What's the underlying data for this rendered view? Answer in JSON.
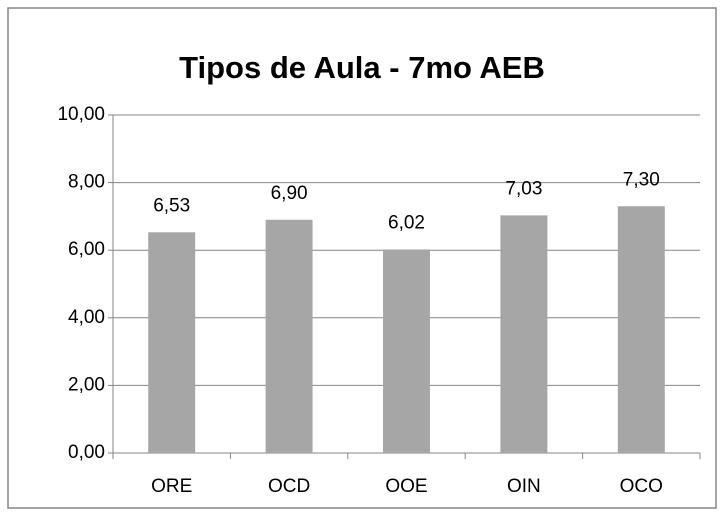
{
  "chart_data": {
    "type": "bar",
    "title": "Tipos de Aula - 7mo AEB",
    "categories": [
      "ORE",
      "OCD",
      "OOE",
      "OIN",
      "OCO"
    ],
    "values": [
      6.53,
      6.9,
      6.02,
      7.03,
      7.3
    ],
    "value_labels": [
      "6,53",
      "6,90",
      "6,02",
      "7,03",
      "7,30"
    ],
    "color": "#a6a6a6",
    "ylim": [
      0,
      10
    ],
    "yticks": [
      {
        "value": 0,
        "label": "0,00"
      },
      {
        "value": 2,
        "label": "2,00"
      },
      {
        "value": 4,
        "label": "4,00"
      },
      {
        "value": 6,
        "label": "6,00"
      },
      {
        "value": 8,
        "label": "8,00"
      },
      {
        "value": 10,
        "label": "10,00"
      }
    ],
    "grid": true
  }
}
